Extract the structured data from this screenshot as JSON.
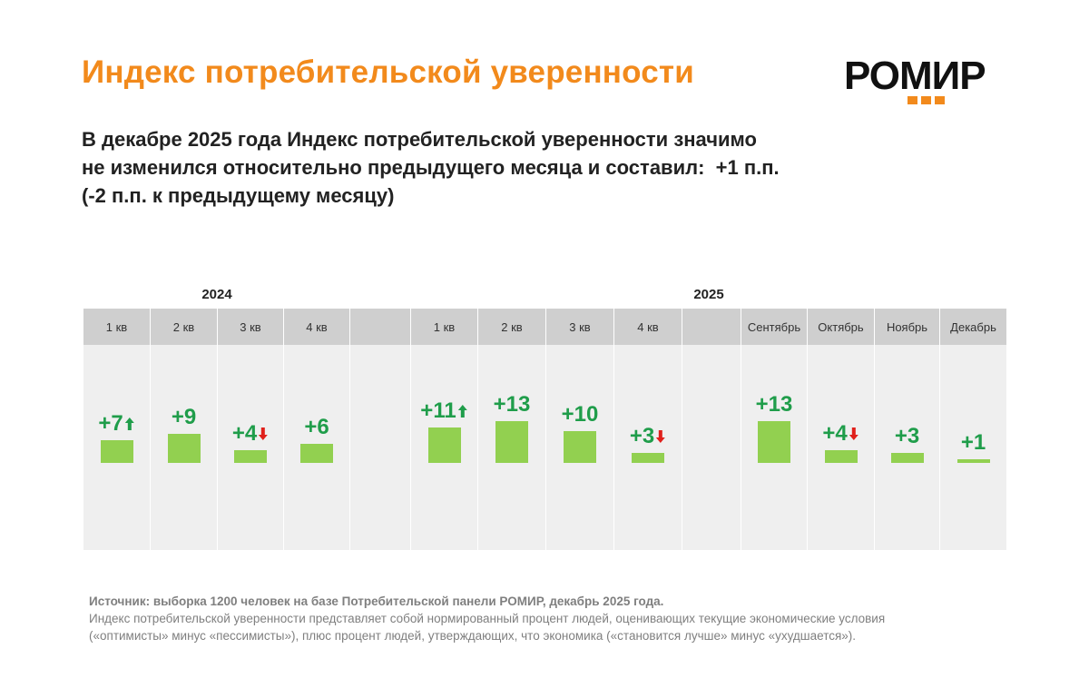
{
  "title": "Индекс потребительской уверенности",
  "logo": {
    "text": "РОМИР",
    "accent_color": "#f28a1c"
  },
  "subtitle": {
    "line1": "В декабре 2025 года Индекс потребительской уверенности значимо",
    "line2": "не изменился относительно предыдущего месяца и составил:  +1 п.п.",
    "line3": "(-2 п.п. к предыдущему месяцу)"
  },
  "chart_data": {
    "type": "bar",
    "title": "Индекс потребительской уверенности",
    "unit": "п.п.",
    "groups": [
      {
        "name": "2024",
        "categories": [
          "1 кв",
          "2 кв",
          "3 кв",
          "4 кв"
        ]
      },
      {
        "name": "2025",
        "categories": [
          "1 кв",
          "2 кв",
          "3 кв",
          "4 кв",
          "Сентябрь",
          "Октябрь",
          "Ноябрь",
          "Декабрь"
        ]
      }
    ],
    "points": [
      {
        "year": "2024",
        "period": "1 кв",
        "value": 7,
        "label": "+7",
        "trend": "up"
      },
      {
        "year": "2024",
        "period": "2 кв",
        "value": 9,
        "label": "+9",
        "trend": ""
      },
      {
        "year": "2024",
        "period": "3 кв",
        "value": 4,
        "label": "+4",
        "trend": "down"
      },
      {
        "year": "2024",
        "period": "4 кв",
        "value": 6,
        "label": "+6",
        "trend": ""
      },
      {
        "year": "2025",
        "period": "1 кв",
        "value": 11,
        "label": "+11",
        "trend": "up"
      },
      {
        "year": "2025",
        "period": "2 кв",
        "value": 13,
        "label": "+13",
        "trend": ""
      },
      {
        "year": "2025",
        "period": "3 кв",
        "value": 10,
        "label": "+10",
        "trend": ""
      },
      {
        "year": "2025",
        "period": "4 кв",
        "value": 3,
        "label": "+3",
        "trend": "down"
      },
      {
        "year": "2025",
        "period": "Сентябрь",
        "value": 13,
        "label": "+13",
        "trend": ""
      },
      {
        "year": "2025",
        "period": "Октябрь",
        "value": 4,
        "label": "+4",
        "trend": "down"
      },
      {
        "year": "2025",
        "period": "Ноябрь",
        "value": 3,
        "label": "+3",
        "trend": ""
      },
      {
        "year": "2025",
        "period": "Декабрь",
        "value": 1,
        "label": "+1",
        "trend": ""
      }
    ],
    "colors": {
      "bar": "#92d050",
      "label": "#1f9d4a",
      "up": "#1f9d4a",
      "down": "#e0201b"
    },
    "ylim": [
      0,
      14
    ]
  },
  "footer": {
    "source": "Источник: выборка 1200 человек на базе Потребительской панели РОМИР, декабрь 2025 года.",
    "line2": "Индекс потребительской уверенности представляет собой нормированный процент людей, оценивающих текущие экономические условия",
    "line3": "(«оптимисты» минус «пессимисты»), плюс процент людей, утверждающих, что экономика («становится лучше» минус «ухудшается»)."
  }
}
